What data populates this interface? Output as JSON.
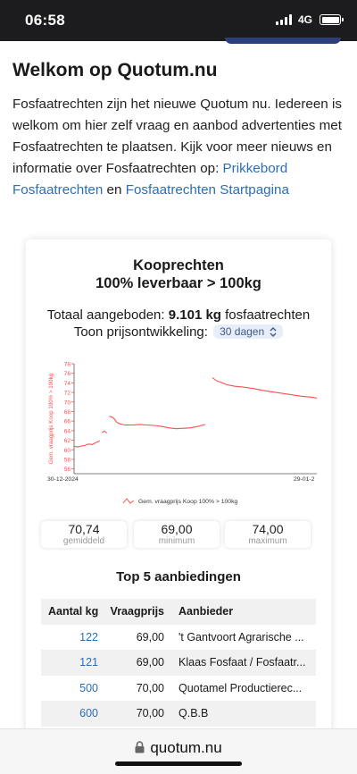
{
  "status_bar": {
    "time": "06:58",
    "network": "4G"
  },
  "intro": {
    "title": "Welkom op Quotum.nu",
    "text_1": "Fosfaatrechten zijn het nieuwe Quotum nu. Iedereen is welkom om hier zelf vraag en aanbod advertenties met Fosfaatrechten te plaatsen. Kijk voor meer nieuws en informatie over Fosfaatrechten op:",
    "link_1": "Prikkebord Fosfaatrechten",
    "joiner": "en",
    "link_2": "Fosfaatrechten Startpagina"
  },
  "card": {
    "title_1": "Kooprechten",
    "title_2": "100% leverbaar > 100kg",
    "offered_label": "Totaal aangeboden:",
    "offered_value": "9.101 kg",
    "offered_unit": "fosfaatrechten",
    "price_label": "Toon prijsontwikkeling:",
    "period_select": "30 dagen",
    "stats": [
      {
        "value": "70,74",
        "label": "gemiddeld"
      },
      {
        "value": "69,00",
        "label": "minimum"
      },
      {
        "value": "74,00",
        "label": "maximum"
      }
    ],
    "top5_title": "Top 5 aanbiedingen",
    "table": {
      "headers": [
        "Aantal kg",
        "Vraagprijs",
        "Aanbieder"
      ],
      "rows": [
        {
          "kg": "122",
          "price": "69,00",
          "seller": "'t Gantvoort Agrarische ..."
        },
        {
          "kg": "121",
          "price": "69,00",
          "seller": "Klaas Fosfaat / Fosfaatr..."
        },
        {
          "kg": "500",
          "price": "70,00",
          "seller": "Quotamel Productierec..."
        },
        {
          "kg": "600",
          "price": "70,00",
          "seller": "Q.B.B"
        }
      ]
    }
  },
  "chart_data": {
    "type": "line",
    "ylabel": "Gem. vraagprijs Koop 100% > 100kg",
    "xlabels": [
      "30-12-2024",
      "29-01-2"
    ],
    "ylim": [
      55,
      78
    ],
    "yticks": [
      56,
      58,
      60,
      62,
      64,
      66,
      68,
      70,
      72,
      74,
      76,
      78
    ],
    "grid": false,
    "legend": "bottom",
    "color": "#ff4d4d",
    "series": [
      {
        "name": "Gem. vraagprijs Koop 100% > 100kg",
        "segments": [
          [
            [
              0,
              60.7
            ],
            [
              1.5,
              60.6
            ],
            [
              3,
              60.8
            ],
            [
              4.5,
              60.9
            ],
            [
              6,
              61.2
            ],
            [
              7.5,
              61.1
            ],
            [
              9,
              61.5
            ],
            [
              10.5,
              61.9
            ]
          ],
          [
            [
              11.5,
              63.6
            ],
            [
              12.5,
              63.9
            ],
            [
              13.5,
              63.5
            ]
          ],
          [
            [
              14.5,
              67.0
            ],
            [
              15.5,
              66.9
            ],
            [
              16.5,
              66.5
            ],
            [
              17.5,
              65.8
            ],
            [
              19,
              65.4
            ],
            [
              21,
              65.2
            ],
            [
              24,
              65.2
            ],
            [
              27,
              65.3
            ],
            [
              30,
              65.2
            ],
            [
              33,
              65.1
            ],
            [
              36,
              64.9
            ],
            [
              39,
              64.6
            ],
            [
              42,
              64.4
            ],
            [
              45,
              64.5
            ],
            [
              48,
              64.6
            ],
            [
              51,
              64.9
            ],
            [
              54,
              65.3
            ]
          ],
          [
            [
              57,
              75.1
            ],
            [
              58.5,
              74.5
            ],
            [
              60,
              74.2
            ],
            [
              63,
              73.6
            ],
            [
              66,
              73.3
            ],
            [
              70,
              73.1
            ],
            [
              74,
              72.8
            ],
            [
              78,
              72.4
            ],
            [
              82,
              72.1
            ],
            [
              86,
              71.8
            ],
            [
              90,
              71.5
            ],
            [
              94,
              71.2
            ],
            [
              98,
              71.0
            ],
            [
              100,
              70.8
            ]
          ]
        ]
      }
    ]
  },
  "footer": {
    "url": "quotum.nu"
  }
}
